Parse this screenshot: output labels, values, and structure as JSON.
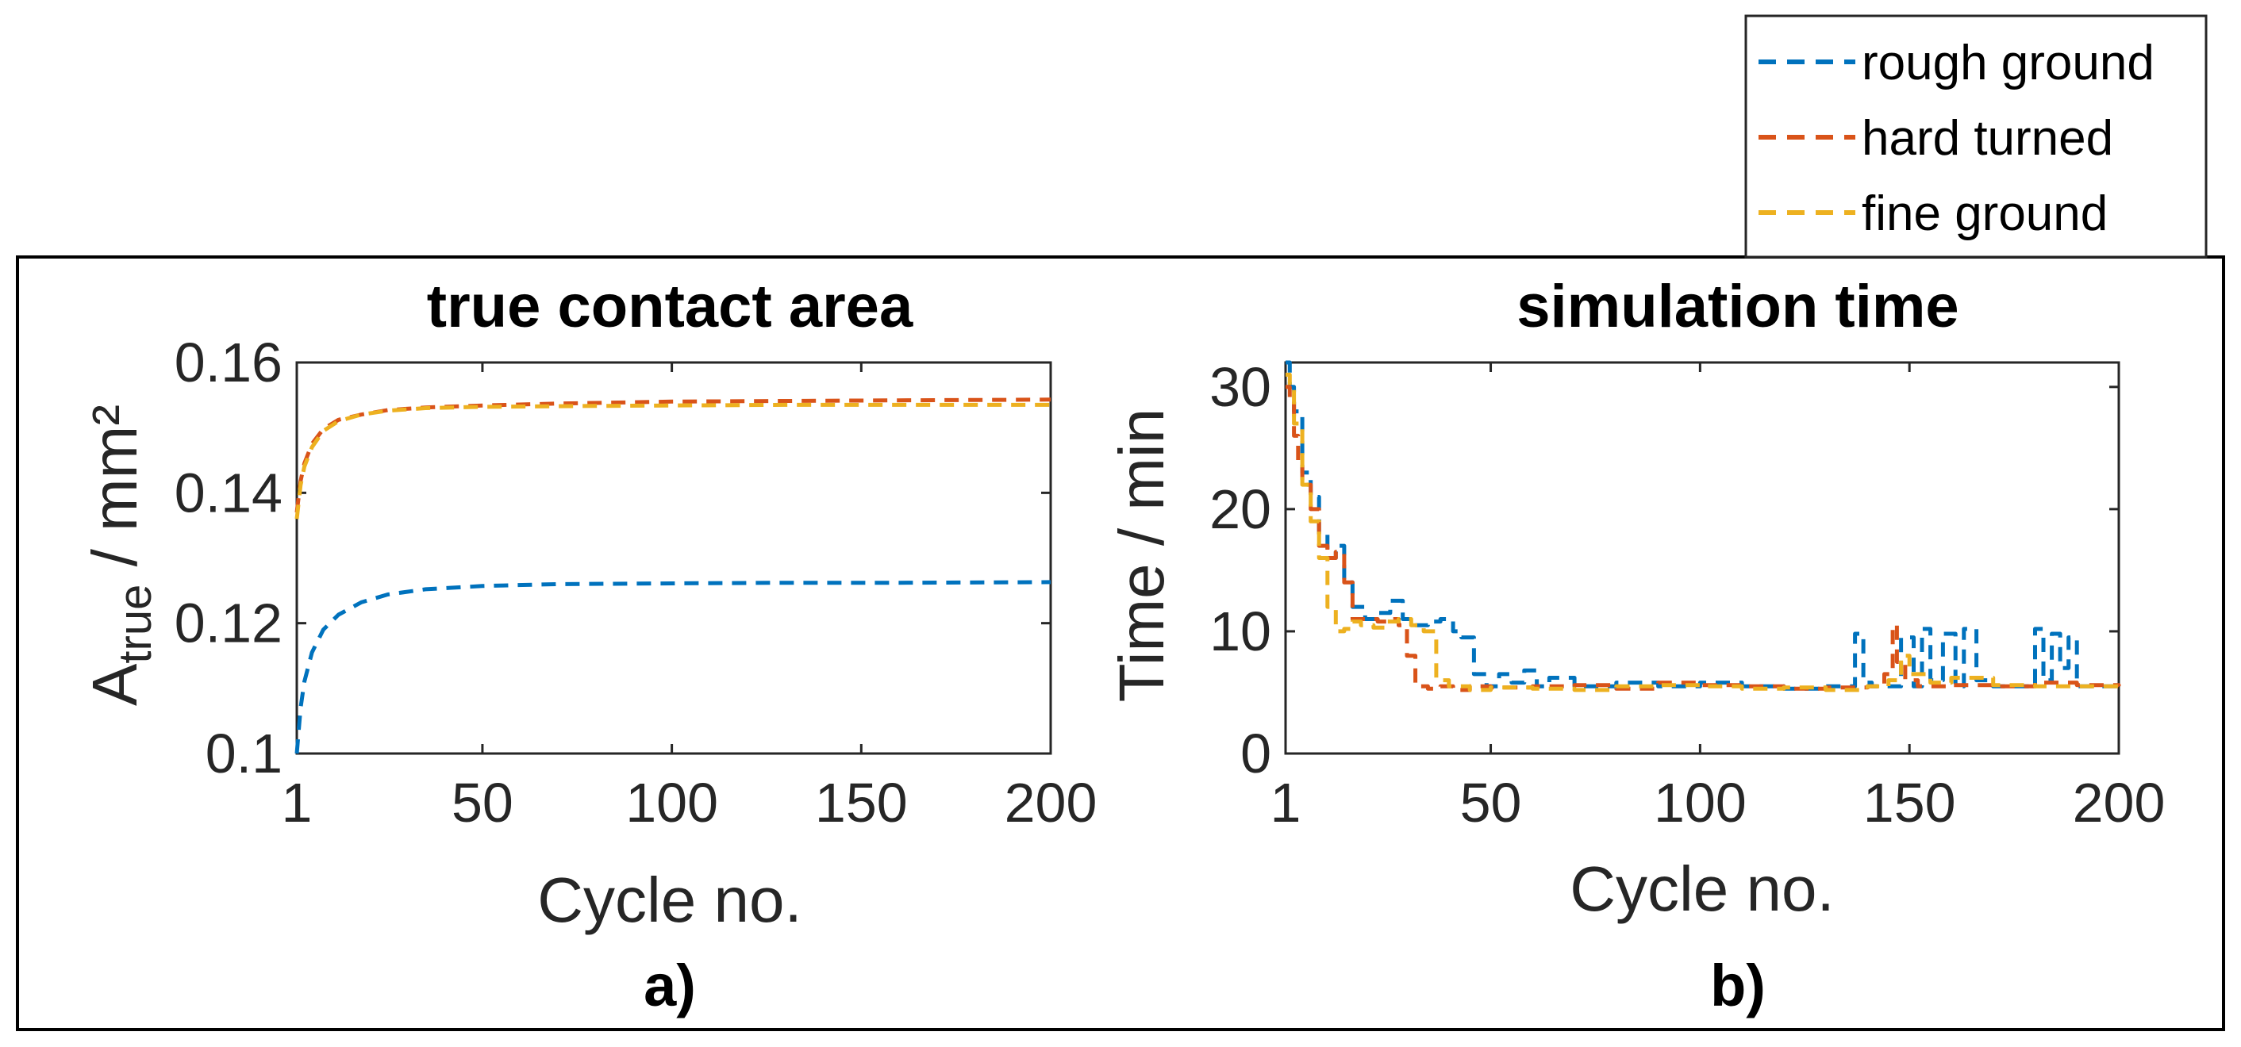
{
  "legend": {
    "entries": [
      {
        "label": "rough ground",
        "color": "#0072BD"
      },
      {
        "label": "hard turned",
        "color": "#D95319"
      },
      {
        "label": "fine ground",
        "color": "#EDB120"
      }
    ]
  },
  "chart_data": [
    {
      "type": "line",
      "panel_label": "a)",
      "title": "true contact area",
      "xlabel": "Cycle no.",
      "ylabel_main": "A",
      "ylabel_sub": "true",
      "ylabel_unit": " / mm²",
      "xlim": [
        1,
        200
      ],
      "ylim": [
        0.1,
        0.16
      ],
      "xticks": [
        1,
        50,
        100,
        150,
        200
      ],
      "yticks": [
        0.1,
        0.12,
        0.14,
        0.16
      ],
      "ytick_labels": [
        "0.1",
        "0.12",
        "0.14",
        "0.16"
      ],
      "line_style": "dashed",
      "series": [
        {
          "name": "rough ground",
          "x": [
            1,
            2,
            3,
            5,
            8,
            12,
            18,
            25,
            35,
            50,
            70,
            100,
            130,
            160,
            200
          ],
          "values": [
            0.1,
            0.107,
            0.111,
            0.1155,
            0.119,
            0.1213,
            0.1232,
            0.1244,
            0.1252,
            0.1257,
            0.126,
            0.1261,
            0.1262,
            0.1262,
            0.1263
          ]
        },
        {
          "name": "hard turned",
          "x": [
            1,
            2,
            3,
            5,
            8,
            12,
            18,
            25,
            35,
            50,
            70,
            100,
            130,
            160,
            200
          ],
          "values": [
            0.137,
            0.1418,
            0.1445,
            0.1475,
            0.1498,
            0.1512,
            0.152,
            0.1527,
            0.1531,
            0.1534,
            0.1537,
            0.154,
            0.1541,
            0.1542,
            0.1543
          ]
        },
        {
          "name": "fine ground",
          "x": [
            1,
            2,
            3,
            5,
            8,
            12,
            18,
            25,
            35,
            50,
            70,
            100,
            130,
            160,
            200
          ],
          "values": [
            0.136,
            0.1412,
            0.144,
            0.147,
            0.1495,
            0.151,
            0.152,
            0.1526,
            0.153,
            0.1532,
            0.1533,
            0.1534,
            0.1535,
            0.1535,
            0.1535
          ]
        }
      ]
    },
    {
      "type": "line",
      "panel_label": "b)",
      "title": "simulation time",
      "xlabel": "Cycle no.",
      "ylabel": "Time / min",
      "xlim": [
        1,
        200
      ],
      "ylim": [
        0,
        32
      ],
      "xticks": [
        1,
        50,
        100,
        150,
        200
      ],
      "yticks": [
        0,
        10,
        20,
        30
      ],
      "ytick_labels": [
        "0",
        "10",
        "20",
        "30"
      ],
      "line_style": "dashed",
      "series": [
        {
          "name": "rough ground",
          "x": [
            1,
            2,
            3,
            5,
            7,
            9,
            11,
            13,
            15,
            17,
            20,
            23,
            26,
            29,
            32,
            35,
            38,
            41,
            43,
            46,
            49,
            52,
            55,
            58,
            61,
            64,
            70,
            80,
            90,
            100,
            110,
            120,
            130,
            135,
            137,
            139,
            141,
            145,
            148,
            151,
            153,
            155,
            158,
            161,
            163,
            166,
            170,
            175,
            178,
            180,
            182,
            184,
            186,
            188,
            190,
            195,
            200
          ],
          "values": [
            32,
            30,
            28,
            23,
            21,
            18,
            16,
            17,
            14,
            12,
            11,
            11.5,
            12.5,
            11,
            10.5,
            10.8,
            11,
            10,
            9.5,
            6.5,
            5.5,
            6.5,
            5.8,
            6.8,
            5.5,
            6.2,
            5.5,
            5.8,
            5.5,
            5.8,
            5.5,
            5.3,
            5.5,
            5.5,
            9.8,
            5.8,
            5.5,
            5.5,
            9.5,
            5.5,
            10.2,
            6,
            9.8,
            5.5,
            10.2,
            6,
            5.5,
            5.5,
            5.5,
            10.2,
            6,
            9.8,
            7,
            9.5,
            5.5,
            5.5,
            5.3
          ]
        },
        {
          "name": "hard turned",
          "x": [
            1,
            2,
            3,
            4,
            5,
            7,
            9,
            11,
            13,
            15,
            17,
            20,
            23,
            26,
            28,
            30,
            32,
            35,
            38,
            41,
            45,
            50,
            60,
            70,
            80,
            90,
            100,
            110,
            120,
            130,
            140,
            144,
            146,
            147,
            149,
            152,
            160,
            170,
            180,
            190,
            200
          ],
          "values": [
            30,
            29,
            26,
            24,
            22,
            20,
            17,
            16,
            16.5,
            14,
            11,
            11,
            10.8,
            11,
            10.5,
            8,
            5.5,
            5.3,
            5.5,
            5.2,
            5.5,
            5.4,
            5.5,
            5.6,
            5.3,
            5.8,
            5.6,
            5.5,
            5.3,
            5.4,
            5.5,
            6.5,
            10.5,
            7.5,
            6,
            5.5,
            5.6,
            5.5,
            5.8,
            5.6,
            5.5
          ]
        },
        {
          "name": "fine ground",
          "x": [
            1,
            2,
            3,
            5,
            7,
            9,
            11,
            13,
            15,
            17,
            19,
            22,
            25,
            28,
            31,
            34,
            37,
            40,
            45,
            50,
            60,
            70,
            80,
            90,
            100,
            110,
            120,
            130,
            140,
            145,
            148,
            150,
            155,
            160,
            170,
            180,
            190,
            200
          ],
          "values": [
            31,
            30,
            27,
            22,
            19,
            16,
            12,
            10,
            10.2,
            10.8,
            10.5,
            10.3,
            10.8,
            11,
            10.5,
            10,
            6,
            5.5,
            5.2,
            5.4,
            5.3,
            5.2,
            5.5,
            5.6,
            5.5,
            5.3,
            5.4,
            5.2,
            5.5,
            6,
            8,
            6.5,
            5.8,
            6.2,
            5.6,
            5.5,
            5.5,
            5.6
          ]
        }
      ]
    }
  ]
}
